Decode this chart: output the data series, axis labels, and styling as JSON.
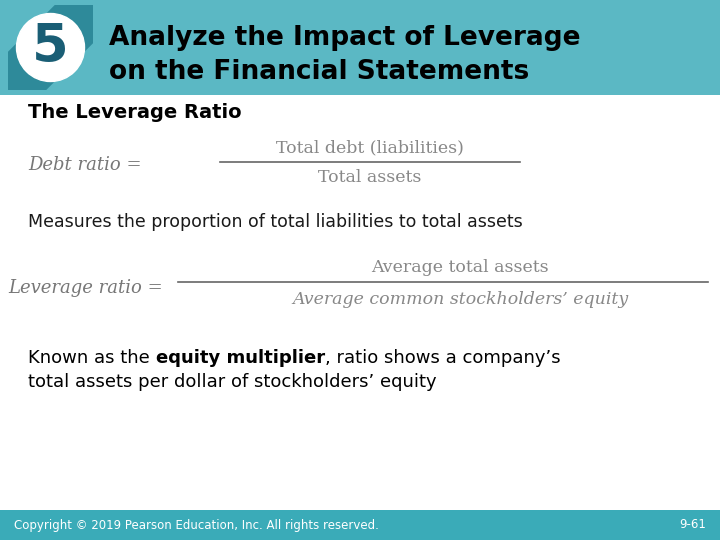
{
  "title_line1": "Analyze the Impact of Leverage",
  "title_line2": "on the Financial Statements",
  "section_number": "5",
  "subtitle": "The Leverage Ratio",
  "debt_ratio_label": "Debt ratio = ",
  "debt_ratio_numerator": "Total debt (liabilities)",
  "debt_ratio_denominator": "Total assets",
  "measures_text": "Measures the proportion of total liabilities to total assets",
  "leverage_ratio_label": "Leverage ratio = ",
  "leverage_ratio_numerator": "Average total assets",
  "leverage_ratio_denominator": "Average common stockholders’ equity",
  "known_text_part1": "Known as the ",
  "known_text_bold": "equity multiplier",
  "known_text_part2": ", ratio shows a company’s",
  "known_text_line2": "total assets per dollar of stockholders’ equity",
  "copyright_text": "Copyright © 2019 Pearson Education, Inc. All rights reserved.",
  "page_number": "9-61",
  "header_bg_color": "#5BB8C4",
  "header_dark_color": "#2E8A9A",
  "footer_bg_color": "#3AABB8",
  "number_circle_color": "#1A5E75",
  "bg_color": "#FFFFFF",
  "footer_text_color": "#FFFFFF",
  "formula_color": "#888888",
  "body_color": "#1a1a1a"
}
